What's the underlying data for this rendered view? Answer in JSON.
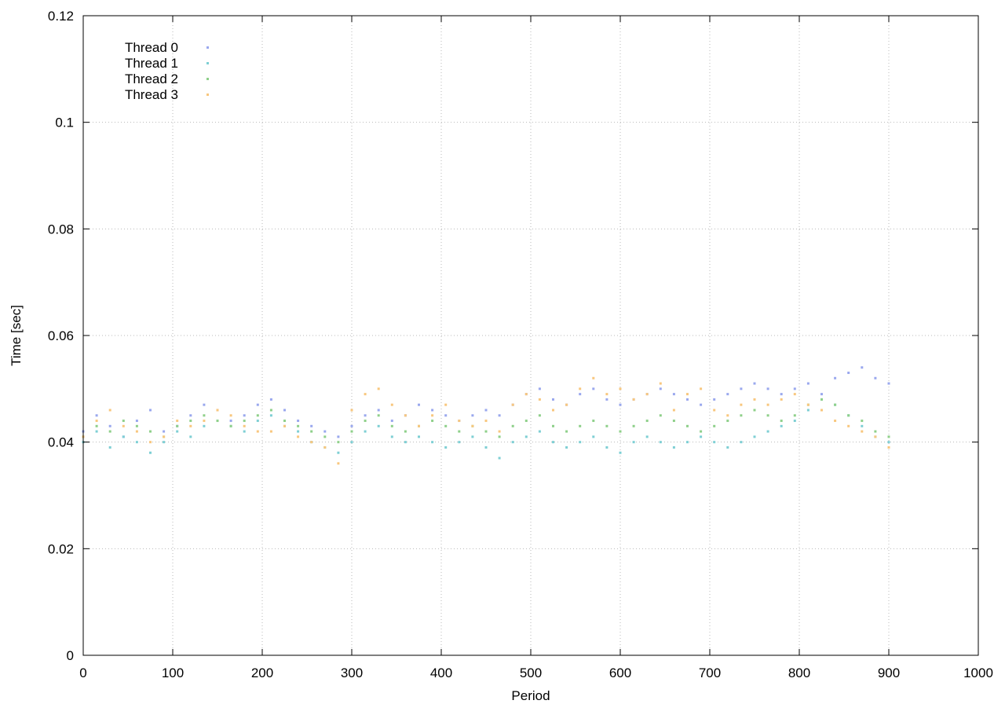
{
  "chart_data": {
    "type": "scatter",
    "title": "",
    "xlabel": "Period",
    "ylabel": "Time [sec]",
    "xlim": [
      0,
      1000
    ],
    "ylim": [
      0,
      0.12
    ],
    "xticks": [
      0,
      100,
      200,
      300,
      400,
      500,
      600,
      700,
      800,
      900,
      1000
    ],
    "yticks": [
      0,
      0.02,
      0.04,
      0.06,
      0.08,
      0.1,
      0.12
    ],
    "xtick_labels": [
      "0",
      "100",
      "200",
      "300",
      "400",
      "500",
      "600",
      "700",
      "800",
      "900",
      "1000"
    ],
    "ytick_labels": [
      "0",
      "0.02",
      "0.04",
      "0.06",
      "0.08",
      "0.1",
      "0.12"
    ],
    "grid": true,
    "legend_position": "top-left",
    "series": [
      {
        "name": "Thread 0",
        "color": "#9aa8ee",
        "x": [
          0,
          15,
          30,
          45,
          60,
          75,
          90,
          105,
          120,
          135,
          150,
          165,
          180,
          195,
          210,
          225,
          240,
          255,
          270,
          285,
          300,
          315,
          330,
          345,
          360,
          375,
          390,
          405,
          420,
          435,
          450,
          465,
          480,
          495,
          510,
          525,
          540,
          555,
          570,
          585,
          600,
          615,
          630,
          645,
          660,
          675,
          690,
          705,
          720,
          735,
          750,
          765,
          780,
          795,
          810,
          825,
          840,
          855,
          870,
          885,
          900
        ],
        "y": [
          0.042,
          0.045,
          0.043,
          0.041,
          0.044,
          0.046,
          0.042,
          0.043,
          0.045,
          0.047,
          0.046,
          0.044,
          0.045,
          0.047,
          0.048,
          0.046,
          0.044,
          0.043,
          0.042,
          0.041,
          0.043,
          0.045,
          0.046,
          0.044,
          0.045,
          0.047,
          0.046,
          0.045,
          0.044,
          0.045,
          0.046,
          0.045,
          0.047,
          0.049,
          0.05,
          0.048,
          0.047,
          0.049,
          0.05,
          0.048,
          0.047,
          0.048,
          0.049,
          0.05,
          0.049,
          0.048,
          0.047,
          0.048,
          0.049,
          0.05,
          0.051,
          0.05,
          0.049,
          0.05,
          0.051,
          0.049,
          0.052,
          0.053,
          0.054,
          0.052,
          0.051
        ]
      },
      {
        "name": "Thread 1",
        "color": "#7ecfd4",
        "x": [
          0,
          15,
          30,
          45,
          60,
          75,
          90,
          105,
          120,
          135,
          150,
          165,
          180,
          195,
          210,
          225,
          240,
          255,
          270,
          285,
          300,
          315,
          330,
          345,
          360,
          375,
          390,
          405,
          420,
          435,
          450,
          465,
          480,
          495,
          510,
          525,
          540,
          555,
          570,
          585,
          600,
          615,
          630,
          645,
          660,
          675,
          690,
          705,
          720,
          735,
          750,
          765,
          780,
          795,
          810,
          825,
          840,
          855,
          870,
          885,
          900
        ],
        "y": [
          0.04,
          0.042,
          0.039,
          0.041,
          0.04,
          0.038,
          0.04,
          0.042,
          0.041,
          0.043,
          0.044,
          0.043,
          0.042,
          0.044,
          0.045,
          0.043,
          0.042,
          0.04,
          0.039,
          0.038,
          0.04,
          0.042,
          0.043,
          0.041,
          0.04,
          0.041,
          0.04,
          0.039,
          0.04,
          0.041,
          0.039,
          0.037,
          0.04,
          0.041,
          0.042,
          0.04,
          0.039,
          0.04,
          0.041,
          0.039,
          0.038,
          0.04,
          0.041,
          0.04,
          0.039,
          0.04,
          0.041,
          0.04,
          0.039,
          0.04,
          0.041,
          0.042,
          0.043,
          0.044,
          0.046,
          0.048,
          0.047,
          0.045,
          0.043,
          0.041,
          0.04
        ]
      },
      {
        "name": "Thread 2",
        "color": "#8fd08a",
        "x": [
          0,
          15,
          30,
          45,
          60,
          75,
          90,
          105,
          120,
          135,
          150,
          165,
          180,
          195,
          210,
          225,
          240,
          255,
          270,
          285,
          300,
          315,
          330,
          345,
          360,
          375,
          390,
          405,
          420,
          435,
          450,
          465,
          480,
          495,
          510,
          525,
          540,
          555,
          570,
          585,
          600,
          615,
          630,
          645,
          660,
          675,
          690,
          705,
          720,
          735,
          750,
          765,
          780,
          795,
          810,
          825,
          840,
          855,
          870,
          885,
          900
        ],
        "y": [
          0.041,
          0.043,
          0.042,
          0.044,
          0.043,
          0.042,
          0.041,
          0.043,
          0.044,
          0.045,
          0.044,
          0.043,
          0.044,
          0.045,
          0.046,
          0.044,
          0.043,
          0.042,
          0.041,
          0.04,
          0.042,
          0.044,
          0.045,
          0.043,
          0.042,
          0.043,
          0.044,
          0.043,
          0.042,
          0.043,
          0.042,
          0.041,
          0.043,
          0.044,
          0.045,
          0.043,
          0.042,
          0.043,
          0.044,
          0.043,
          0.042,
          0.043,
          0.044,
          0.045,
          0.044,
          0.043,
          0.042,
          0.043,
          0.044,
          0.045,
          0.046,
          0.045,
          0.044,
          0.045,
          0.047,
          0.048,
          0.047,
          0.045,
          0.044,
          0.042,
          0.041
        ]
      },
      {
        "name": "Thread 3",
        "color": "#f8c77e",
        "x": [
          0,
          15,
          30,
          45,
          60,
          75,
          90,
          105,
          120,
          135,
          150,
          165,
          180,
          195,
          210,
          225,
          240,
          255,
          270,
          285,
          300,
          315,
          330,
          345,
          360,
          375,
          390,
          405,
          420,
          435,
          450,
          465,
          480,
          495,
          510,
          525,
          540,
          555,
          570,
          585,
          600,
          615,
          630,
          645,
          660,
          675,
          690,
          705,
          720,
          735,
          750,
          765,
          780,
          795,
          810,
          825,
          840,
          855,
          870,
          885,
          900
        ],
        "y": [
          0.041,
          0.044,
          0.046,
          0.043,
          0.042,
          0.04,
          0.041,
          0.044,
          0.043,
          0.044,
          0.046,
          0.045,
          0.043,
          0.042,
          0.042,
          0.043,
          0.041,
          0.04,
          0.039,
          0.036,
          0.046,
          0.049,
          0.05,
          0.047,
          0.045,
          0.043,
          0.045,
          0.047,
          0.044,
          0.043,
          0.044,
          0.042,
          0.047,
          0.049,
          0.048,
          0.046,
          0.047,
          0.05,
          0.052,
          0.049,
          0.05,
          0.048,
          0.049,
          0.051,
          0.046,
          0.049,
          0.05,
          0.046,
          0.045,
          0.047,
          0.048,
          0.047,
          0.048,
          0.049,
          0.047,
          0.046,
          0.044,
          0.043,
          0.042,
          0.041,
          0.039
        ]
      }
    ]
  }
}
